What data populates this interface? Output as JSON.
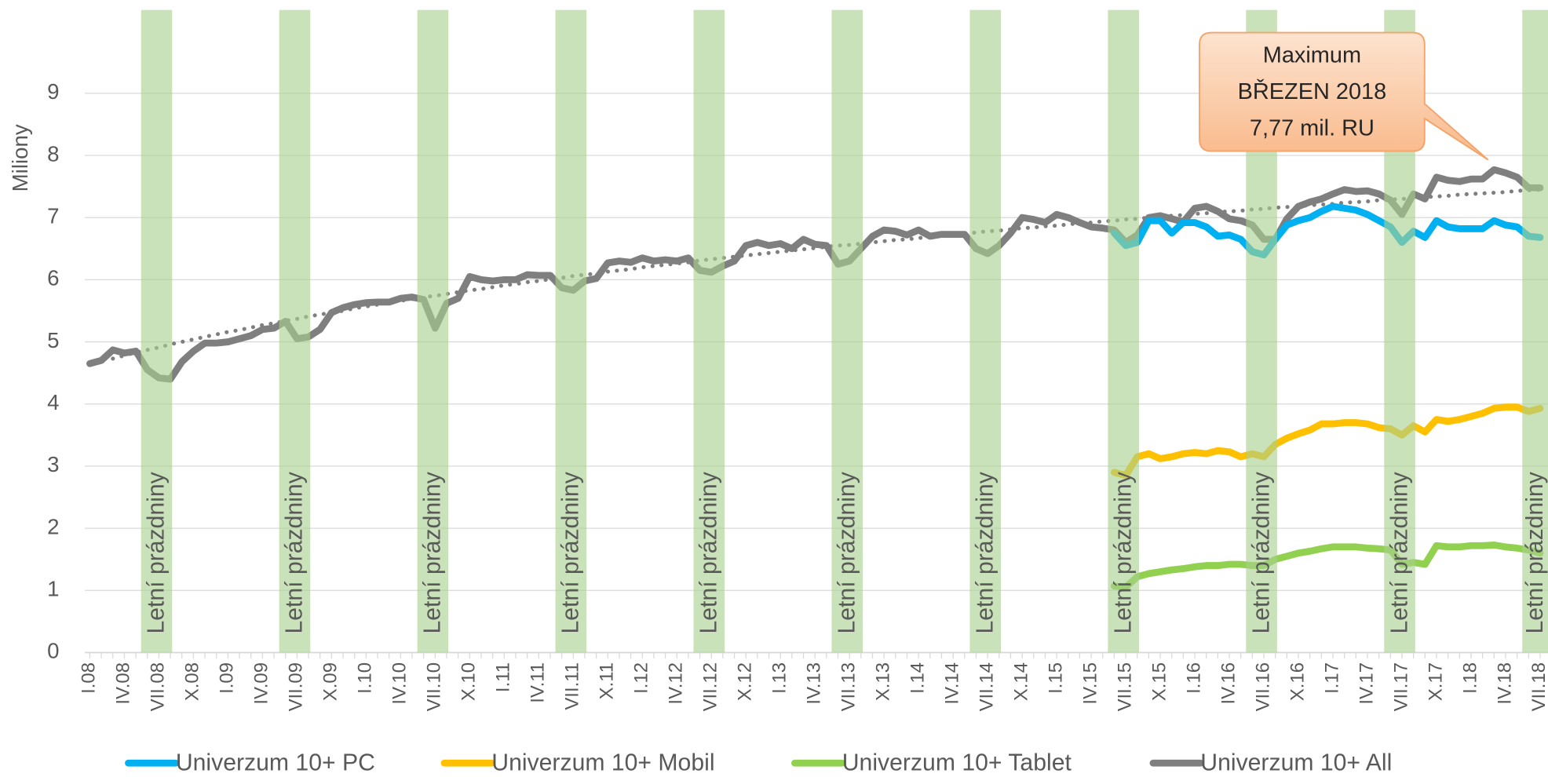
{
  "chart_data": {
    "type": "line",
    "y_label": "Miliony",
    "ylim": [
      0,
      10.5
    ],
    "yticks": [
      0,
      1,
      2,
      3,
      4,
      5,
      6,
      7,
      8,
      9
    ],
    "grid": true,
    "categories": [
      "I.08",
      null,
      null,
      "IV.08",
      null,
      null,
      "VII.08",
      null,
      null,
      "X.08",
      null,
      null,
      "I.09",
      null,
      null,
      "IV.09",
      null,
      null,
      "VII.09",
      null,
      null,
      "X.09",
      null,
      null,
      "I.10",
      null,
      null,
      "IV.10",
      null,
      null,
      "VII.10",
      null,
      null,
      "X.10",
      null,
      null,
      "I.11",
      null,
      null,
      "IV.11",
      null,
      null,
      "VII.11",
      null,
      null,
      "X.11",
      null,
      null,
      "I.12",
      null,
      null,
      "IV.12",
      null,
      null,
      "VII.12",
      null,
      null,
      "X.12",
      null,
      null,
      "I.13",
      null,
      null,
      "IV.13",
      null,
      null,
      "VII.13",
      null,
      null,
      "X.13",
      null,
      null,
      "I.14",
      null,
      null,
      "IV.14",
      null,
      null,
      "VII.14",
      null,
      null,
      "X.14",
      null,
      null,
      "I.15",
      null,
      null,
      "IV.15",
      null,
      null,
      "VII.15",
      null,
      null,
      "X.15",
      null,
      null,
      "I.16",
      null,
      null,
      "IV.16",
      null,
      null,
      "VII.16",
      null,
      null,
      "X.16",
      null,
      null,
      "I.17",
      null,
      null,
      "IV.17",
      null,
      null,
      "VII.17",
      null,
      null,
      "X.17",
      null,
      null,
      "I.18",
      null,
      null,
      "IV.18",
      null,
      null,
      "VII.18"
    ],
    "series": [
      {
        "name": "Univerzum 10+ PC",
        "color": "#00b0f0",
        "values": [
          null,
          null,
          null,
          null,
          null,
          null,
          null,
          null,
          null,
          null,
          null,
          null,
          null,
          null,
          null,
          null,
          null,
          null,
          null,
          null,
          null,
          null,
          null,
          null,
          null,
          null,
          null,
          null,
          null,
          null,
          null,
          null,
          null,
          null,
          null,
          null,
          null,
          null,
          null,
          null,
          null,
          null,
          null,
          null,
          null,
          null,
          null,
          null,
          null,
          null,
          null,
          null,
          null,
          null,
          null,
          null,
          null,
          null,
          null,
          null,
          null,
          null,
          null,
          null,
          null,
          null,
          null,
          null,
          null,
          null,
          null,
          null,
          null,
          null,
          null,
          null,
          null,
          null,
          null,
          null,
          null,
          null,
          null,
          null,
          null,
          null,
          null,
          null,
          null,
          6.75,
          6.55,
          6.6,
          6.95,
          6.95,
          6.75,
          6.92,
          6.92,
          6.85,
          6.7,
          6.72,
          6.65,
          6.45,
          6.4,
          6.65,
          6.88,
          6.95,
          7.0,
          7.1,
          7.18,
          7.15,
          7.12,
          7.05,
          6.95,
          6.85,
          6.6,
          6.78,
          6.68,
          6.95,
          6.85,
          6.82,
          6.82,
          6.82,
          6.95,
          6.88,
          6.85,
          6.7,
          6.68
        ]
      },
      {
        "name": "Univerzum 10+ Mobil",
        "color": "#ffc000",
        "values": [
          null,
          null,
          null,
          null,
          null,
          null,
          null,
          null,
          null,
          null,
          null,
          null,
          null,
          null,
          null,
          null,
          null,
          null,
          null,
          null,
          null,
          null,
          null,
          null,
          null,
          null,
          null,
          null,
          null,
          null,
          null,
          null,
          null,
          null,
          null,
          null,
          null,
          null,
          null,
          null,
          null,
          null,
          null,
          null,
          null,
          null,
          null,
          null,
          null,
          null,
          null,
          null,
          null,
          null,
          null,
          null,
          null,
          null,
          null,
          null,
          null,
          null,
          null,
          null,
          null,
          null,
          null,
          null,
          null,
          null,
          null,
          null,
          null,
          null,
          null,
          null,
          null,
          null,
          null,
          null,
          null,
          null,
          null,
          null,
          null,
          null,
          null,
          null,
          null,
          2.9,
          2.85,
          3.15,
          3.2,
          3.12,
          3.15,
          3.2,
          3.22,
          3.2,
          3.25,
          3.23,
          3.15,
          3.2,
          3.15,
          3.35,
          3.45,
          3.52,
          3.58,
          3.68,
          3.68,
          3.7,
          3.7,
          3.68,
          3.62,
          3.6,
          3.5,
          3.65,
          3.55,
          3.75,
          3.72,
          3.75,
          3.8,
          3.85,
          3.93,
          3.95,
          3.95,
          3.88,
          3.93
        ]
      },
      {
        "name": "Univerzum 10+ Tablet",
        "color": "#92d050",
        "values": [
          null,
          null,
          null,
          null,
          null,
          null,
          null,
          null,
          null,
          null,
          null,
          null,
          null,
          null,
          null,
          null,
          null,
          null,
          null,
          null,
          null,
          null,
          null,
          null,
          null,
          null,
          null,
          null,
          null,
          null,
          null,
          null,
          null,
          null,
          null,
          null,
          null,
          null,
          null,
          null,
          null,
          null,
          null,
          null,
          null,
          null,
          null,
          null,
          null,
          null,
          null,
          null,
          null,
          null,
          null,
          null,
          null,
          null,
          null,
          null,
          null,
          null,
          null,
          null,
          null,
          null,
          null,
          null,
          null,
          null,
          null,
          null,
          null,
          null,
          null,
          null,
          null,
          null,
          null,
          null,
          null,
          null,
          null,
          null,
          null,
          null,
          null,
          null,
          null,
          1.07,
          1.05,
          1.22,
          1.27,
          1.3,
          1.33,
          1.35,
          1.38,
          1.4,
          1.4,
          1.42,
          1.42,
          1.4,
          1.4,
          1.5,
          1.55,
          1.6,
          1.63,
          1.67,
          1.7,
          1.7,
          1.7,
          1.68,
          1.67,
          1.65,
          1.42,
          1.45,
          1.42,
          1.72,
          1.7,
          1.7,
          1.72,
          1.72,
          1.73,
          1.7,
          1.68,
          1.65,
          1.6
        ]
      },
      {
        "name": "Univerzum 10+ All",
        "color": "#7f7f7f",
        "values": [
          4.65,
          4.7,
          4.87,
          4.82,
          4.85,
          4.55,
          4.42,
          4.4,
          4.68,
          4.85,
          4.98,
          4.98,
          5.0,
          5.05,
          5.1,
          5.2,
          5.22,
          5.33,
          5.05,
          5.08,
          5.2,
          5.47,
          5.55,
          5.6,
          5.63,
          5.64,
          5.64,
          5.7,
          5.72,
          5.68,
          5.22,
          5.62,
          5.7,
          6.05,
          6.0,
          5.98,
          6.0,
          6.0,
          6.08,
          6.07,
          6.07,
          5.87,
          5.83,
          5.98,
          6.02,
          6.27,
          6.3,
          6.28,
          6.35,
          6.3,
          6.32,
          6.3,
          6.35,
          6.15,
          6.12,
          6.22,
          6.3,
          6.55,
          6.6,
          6.55,
          6.58,
          6.5,
          6.65,
          6.57,
          6.55,
          6.25,
          6.3,
          6.5,
          6.7,
          6.8,
          6.78,
          6.72,
          6.8,
          6.7,
          6.73,
          6.73,
          6.73,
          6.5,
          6.42,
          6.55,
          6.75,
          7.0,
          6.97,
          6.92,
          7.05,
          7.0,
          6.92,
          6.85,
          6.83,
          6.8,
          6.6,
          6.72,
          7.0,
          7.03,
          6.98,
          6.93,
          7.15,
          7.18,
          7.1,
          6.98,
          6.95,
          6.88,
          6.65,
          6.65,
          6.98,
          7.18,
          7.25,
          7.3,
          7.38,
          7.45,
          7.42,
          7.43,
          7.38,
          7.28,
          7.05,
          7.38,
          7.3,
          7.65,
          7.6,
          7.58,
          7.62,
          7.62,
          7.77,
          7.72,
          7.65,
          7.48,
          7.48
        ]
      }
    ],
    "trend": {
      "color": "#7f7f7f",
      "values": [
        null,
        null,
        4.73,
        4.78,
        4.83,
        4.87,
        4.91,
        4.96,
        5.0,
        5.04,
        5.08,
        5.12,
        5.16,
        5.19,
        5.23,
        5.27,
        5.3,
        5.34,
        5.37,
        5.41,
        5.44,
        5.47,
        5.5,
        5.54,
        5.57,
        5.6,
        5.63,
        5.66,
        5.69,
        5.72,
        5.74,
        5.77,
        5.8,
        5.83,
        5.85,
        5.88,
        5.91,
        5.93,
        5.96,
        5.98,
        6.01,
        6.03,
        6.06,
        6.08,
        6.1,
        6.13,
        6.15,
        6.17,
        6.2,
        6.22,
        6.24,
        6.26,
        6.28,
        6.31,
        6.33,
        6.35,
        6.37,
        6.39,
        6.41,
        6.43,
        6.45,
        6.47,
        6.49,
        6.51,
        6.53,
        6.55,
        6.56,
        6.58,
        6.6,
        6.62,
        6.64,
        6.65,
        6.67,
        6.69,
        6.71,
        6.73,
        6.74,
        6.76,
        6.78,
        6.79,
        6.81,
        6.83,
        6.84,
        6.86,
        6.87,
        6.89,
        6.91,
        6.92,
        6.94,
        6.95,
        6.97,
        6.98,
        7.0,
        7.01,
        7.03,
        7.04,
        7.06,
        7.07,
        7.09,
        7.1,
        7.11,
        7.13,
        7.14,
        7.16,
        7.17,
        7.18,
        7.2,
        7.21,
        7.22,
        7.24,
        7.25,
        7.26,
        7.28,
        7.29,
        7.3,
        7.31,
        7.33,
        7.34,
        7.35,
        7.37,
        7.38,
        7.39,
        7.4,
        7.41,
        7.43,
        7.44,
        7.45
      ]
    },
    "bands": {
      "label": "Letní prázdniny",
      "color": "#a9d18e",
      "categories": [
        "VII.08",
        "VII.09",
        "VII.10",
        "VII.11",
        "VII.12",
        "VII.13",
        "VII.14",
        "VII.15",
        "VII.16",
        "VII.17",
        "VII.18"
      ]
    },
    "annotation": {
      "lines": [
        "Maximum",
        "BŘEZEN 2018",
        "7,77 mil. RU"
      ],
      "series": 3,
      "value": 7.77
    }
  }
}
